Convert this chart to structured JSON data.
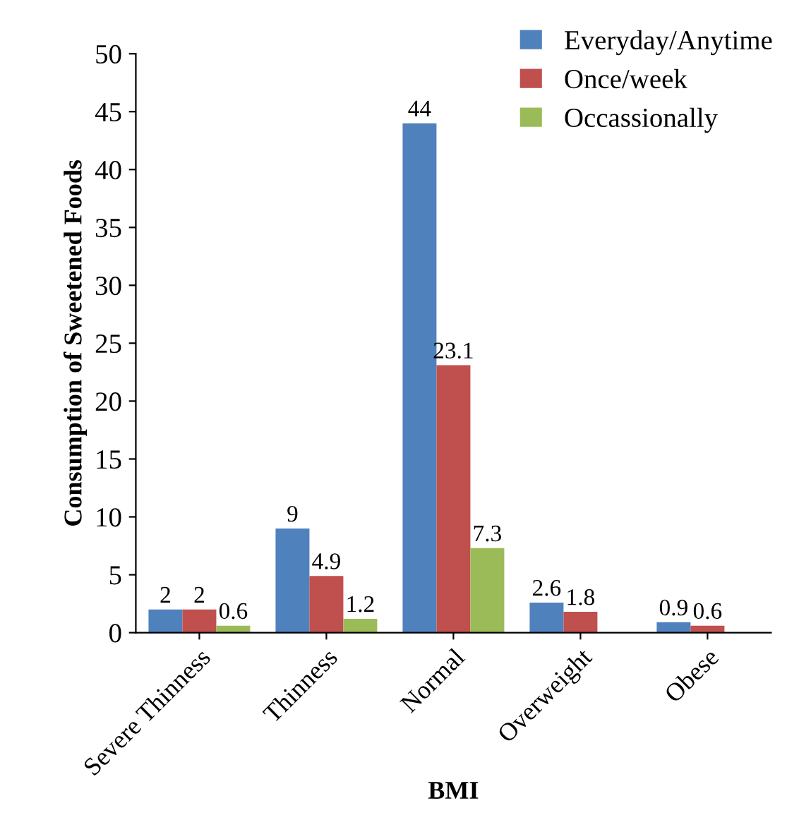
{
  "chart_data": {
    "type": "bar",
    "xlabel": "BMI",
    "ylabel": "Consumption of Sweetened Foods",
    "categories": [
      "Severe Thinness",
      "Thinness",
      "Normal",
      "Overweight",
      "Obese"
    ],
    "series": [
      {
        "name": "Everyday/Anytime",
        "color": "#4f81bd",
        "values": [
          2,
          9,
          44,
          2.6,
          0.9
        ]
      },
      {
        "name": "Once/week",
        "color": "#c0504d",
        "values": [
          2,
          4.9,
          23.1,
          1.8,
          0.6
        ]
      },
      {
        "name": "Occassionally",
        "color": "#9bbb59",
        "values": [
          0.6,
          1.2,
          7.3,
          null,
          null
        ]
      }
    ],
    "ylim": [
      0,
      50
    ],
    "yticks": [
      0,
      5,
      10,
      15,
      20,
      25,
      30,
      35,
      40,
      45,
      50
    ],
    "data_labels": true,
    "grid": false,
    "legend": "top right"
  }
}
